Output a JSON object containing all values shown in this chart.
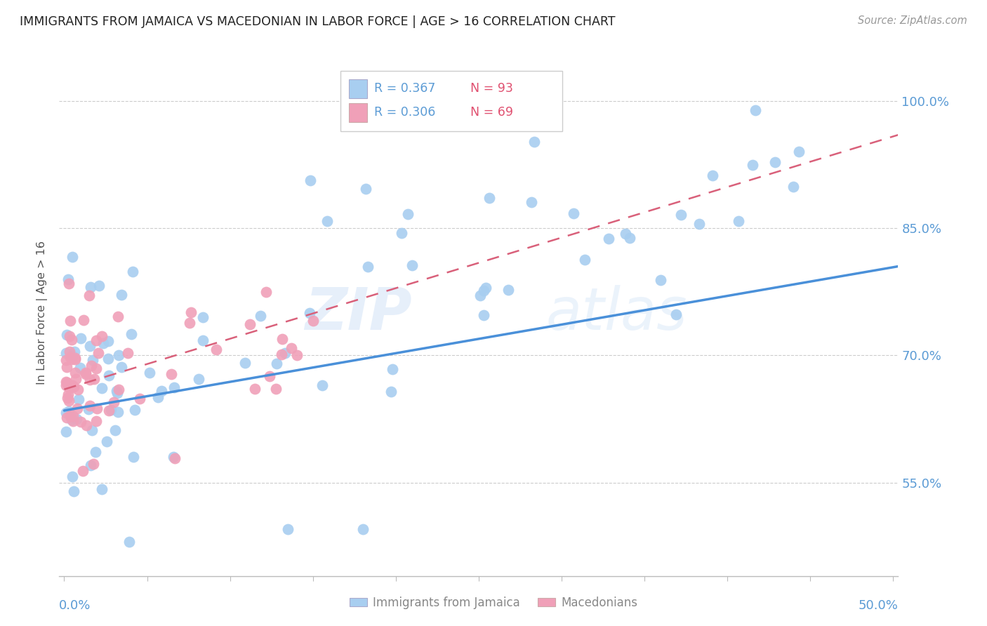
{
  "title": "IMMIGRANTS FROM JAMAICA VS MACEDONIAN IN LABOR FORCE | AGE > 16 CORRELATION CHART",
  "source_text": "Source: ZipAtlas.com",
  "ylabel": "In Labor Force | Age > 16",
  "yaxis_labels": [
    "100.0%",
    "85.0%",
    "70.0%",
    "55.0%"
  ],
  "yaxis_values": [
    1.0,
    0.85,
    0.7,
    0.55
  ],
  "xlim": [
    -0.003,
    0.503
  ],
  "ylim": [
    0.44,
    1.06
  ],
  "watermark_text": "ZIP",
  "watermark_text2": "atlas",
  "jamaica_R": 0.367,
  "jamaica_N": 93,
  "macedonian_R": 0.306,
  "macedonian_N": 69,
  "jamaica_color": "#a8cef0",
  "macedonian_color": "#f0a0b8",
  "jamaica_line_color": "#4a90d9",
  "macedonian_line_color": "#d9607a",
  "jamaica_line_x0": 0.0,
  "jamaica_line_x1": 0.503,
  "jamaica_line_y0": 0.635,
  "jamaica_line_y1": 0.805,
  "macedonian_line_x0": 0.0,
  "macedonian_line_x1": 0.503,
  "macedonian_line_y0": 0.66,
  "macedonian_line_y1": 0.96
}
